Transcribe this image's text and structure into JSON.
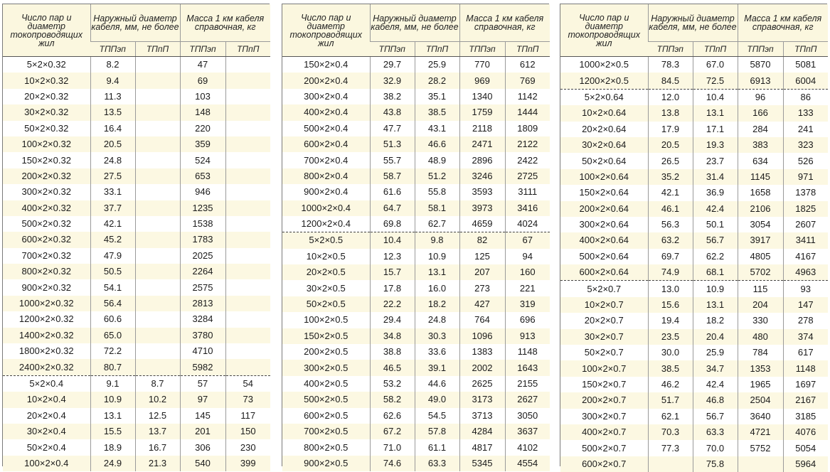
{
  "header": {
    "col1": "Число пар и диаметр токопроводящих жил",
    "col2": "Наружный диаметр кабеля, мм, не более",
    "col3": "Масса 1 км кабеля справочная, кг",
    "sub": [
      "ТППэп",
      "ТПпП",
      "ТППэп",
      "ТПпП"
    ]
  },
  "panels": [
    {
      "rows": [
        [
          "5×2×0.32",
          "8.2",
          "",
          "47",
          ""
        ],
        [
          "10×2×0.32",
          "9.4",
          "",
          "69",
          ""
        ],
        [
          "20×2×0.32",
          "11.3",
          "",
          "103",
          ""
        ],
        [
          "30×2×0.32",
          "13.5",
          "",
          "148",
          ""
        ],
        [
          "50×2×0.32",
          "16.4",
          "",
          "220",
          ""
        ],
        [
          "100×2×0.32",
          "20.5",
          "",
          "359",
          ""
        ],
        [
          "150×2×0.32",
          "24.8",
          "",
          "524",
          ""
        ],
        [
          "200×2×0.32",
          "27.5",
          "",
          "653",
          ""
        ],
        [
          "300×2×0.32",
          "33.1",
          "",
          "946",
          ""
        ],
        [
          "400×2×0.32",
          "37.7",
          "",
          "1235",
          ""
        ],
        [
          "500×2×0.32",
          "42.1",
          "",
          "1538",
          ""
        ],
        [
          "600×2×0.32",
          "45.2",
          "",
          "1783",
          ""
        ],
        [
          "700×2×0.32",
          "47.9",
          "",
          "2025",
          ""
        ],
        [
          "800×2×0.32",
          "50.5",
          "",
          "2264",
          ""
        ],
        [
          "900×2×0.32",
          "54.1",
          "",
          "2575",
          ""
        ],
        [
          "1000×2×0.32",
          "56.4",
          "",
          "2813",
          ""
        ],
        [
          "1200×2×0.32",
          "60.6",
          "",
          "3284",
          ""
        ],
        [
          "1400×2×0.32",
          "65.0",
          "",
          "3780",
          ""
        ],
        [
          "1800×2×0.32",
          "72.2",
          "",
          "4710",
          ""
        ],
        [
          "2400×2×0.32",
          "80.7",
          "",
          "5982",
          ""
        ],
        [
          "5×2×0.4",
          "9.1",
          "8.7",
          "57",
          "54"
        ],
        [
          "10×2×0.4",
          "10.9",
          "10.2",
          "97",
          "73"
        ],
        [
          "20×2×0.4",
          "13.1",
          "12.5",
          "145",
          "117"
        ],
        [
          "30×2×0.4",
          "15.5",
          "13.7",
          "201",
          "150"
        ],
        [
          "50×2×0.4",
          "18.9",
          "16.7",
          "306",
          "230"
        ],
        [
          "100×2×0.4",
          "24.9",
          "21.3",
          "540",
          "399"
        ]
      ],
      "breaks": [
        20
      ]
    },
    {
      "rows": [
        [
          "150×2×0.4",
          "29.7",
          "25.9",
          "770",
          "612"
        ],
        [
          "200×2×0.4",
          "32.9",
          "28.2",
          "969",
          "769"
        ],
        [
          "300×2×0.4",
          "38.2",
          "35.1",
          "1340",
          "1142"
        ],
        [
          "400×2×0.4",
          "43.8",
          "38.5",
          "1759",
          "1444"
        ],
        [
          "500×2×0.4",
          "47.7",
          "43.1",
          "2118",
          "1809"
        ],
        [
          "600×2×0.4",
          "51.3",
          "46.6",
          "2471",
          "2122"
        ],
        [
          "700×2×0.4",
          "55.7",
          "48.9",
          "2896",
          "2422"
        ],
        [
          "800×2×0.4",
          "58.7",
          "51.2",
          "3246",
          "2725"
        ],
        [
          "900×2×0.4",
          "61.6",
          "55.8",
          "3593",
          "3111"
        ],
        [
          "1000×2×0.4",
          "64.7",
          "58.1",
          "3973",
          "3416"
        ],
        [
          "1200×2×0.4",
          "69.8",
          "62.7",
          "4659",
          "4024"
        ],
        [
          "5×2×0.5",
          "10.4",
          "9.8",
          "82",
          "67"
        ],
        [
          "10×2×0.5",
          "12.3",
          "10.9",
          "125",
          "94"
        ],
        [
          "20×2×0.5",
          "15.7",
          "13.1",
          "207",
          "160"
        ],
        [
          "30×2×0.5",
          "17.8",
          "16.0",
          "273",
          "221"
        ],
        [
          "50×2×0.5",
          "22.2",
          "18.2",
          "427",
          "319"
        ],
        [
          "100×2×0.5",
          "29.4",
          "24.8",
          "764",
          "696"
        ],
        [
          "150×2×0.5",
          "34.8",
          "30.3",
          "1096",
          "913"
        ],
        [
          "200×2×0.5",
          "38.8",
          "33.6",
          "1383",
          "1148"
        ],
        [
          "300×2×0.5",
          "46.5",
          "39.1",
          "2002",
          "1643"
        ],
        [
          "400×2×0.5",
          "53.2",
          "44.6",
          "2625",
          "2155"
        ],
        [
          "500×2×0.5",
          "58.2",
          "49.0",
          "3173",
          "2627"
        ],
        [
          "600×2×0.5",
          "62.6",
          "54.5",
          "3713",
          "3050"
        ],
        [
          "700×2×0.5",
          "67.2",
          "57.8",
          "4284",
          "3637"
        ],
        [
          "800×2×0.5",
          "71.0",
          "61.1",
          "4817",
          "4102"
        ],
        [
          "900×2×0.5",
          "74.6",
          "63.3",
          "5345",
          "4554"
        ]
      ],
      "breaks": [
        11
      ]
    },
    {
      "rows": [
        [
          "1000×2×0.5",
          "78.3",
          "67.0",
          "5870",
          "5081"
        ],
        [
          "1200×2×0.5",
          "84.5",
          "72.5",
          "6913",
          "6004"
        ],
        [
          "5×2×0.64",
          "12.0",
          "10.4",
          "96",
          "86"
        ],
        [
          "10×2×0.64",
          "13.8",
          "13.1",
          "166",
          "133"
        ],
        [
          "20×2×0.64",
          "17.9",
          "17.1",
          "284",
          "241"
        ],
        [
          "30×2×0.64",
          "20.5",
          "19.3",
          "383",
          "323"
        ],
        [
          "50×2×0.64",
          "26.5",
          "23.7",
          "634",
          "526"
        ],
        [
          "100×2×0.64",
          "35.2",
          "31.4",
          "1145",
          "971"
        ],
        [
          "150×2×0.64",
          "42.1",
          "36.9",
          "1658",
          "1378"
        ],
        [
          "200×2×0.64",
          "46.1",
          "42.4",
          "2106",
          "1825"
        ],
        [
          "300×2×0.64",
          "56.3",
          "50.1",
          "3054",
          "2607"
        ],
        [
          "400×2×0.64",
          "63.2",
          "56.7",
          "3917",
          "3411"
        ],
        [
          "500×2×0.64",
          "69.7",
          "62.2",
          "4805",
          "4167"
        ],
        [
          "600×2×0.64",
          "74.9",
          "68.1",
          "5702",
          "4963"
        ],
        [
          "5×2×0.7",
          "13.0",
          "10.9",
          "115",
          "93"
        ],
        [
          "10×2×0.7",
          "15.6",
          "13.1",
          "204",
          "147"
        ],
        [
          "20×2×0.7",
          "19.4",
          "18.2",
          "330",
          "278"
        ],
        [
          "30×2×0.7",
          "23.5",
          "20.4",
          "480",
          "374"
        ],
        [
          "50×2×0.7",
          "30.0",
          "25.9",
          "784",
          "617"
        ],
        [
          "100×2×0.7",
          "38.5",
          "34.7",
          "1353",
          "1148"
        ],
        [
          "150×2×0.7",
          "46.2",
          "42.4",
          "1965",
          "1697"
        ],
        [
          "200×2×0.7",
          "51.7",
          "46.8",
          "2504",
          "2167"
        ],
        [
          "300×2×0.7",
          "62.1",
          "56.7",
          "3640",
          "3185"
        ],
        [
          "400×2×0.7",
          "70.3",
          "63.3",
          "4721",
          "4076"
        ],
        [
          "500×2×0.7",
          "77.3",
          "70.0",
          "5752",
          "5054"
        ],
        [
          "600×2×0.7",
          "",
          "75.8",
          "",
          "5964"
        ]
      ],
      "breaks": [
        2,
        14
      ]
    }
  ]
}
